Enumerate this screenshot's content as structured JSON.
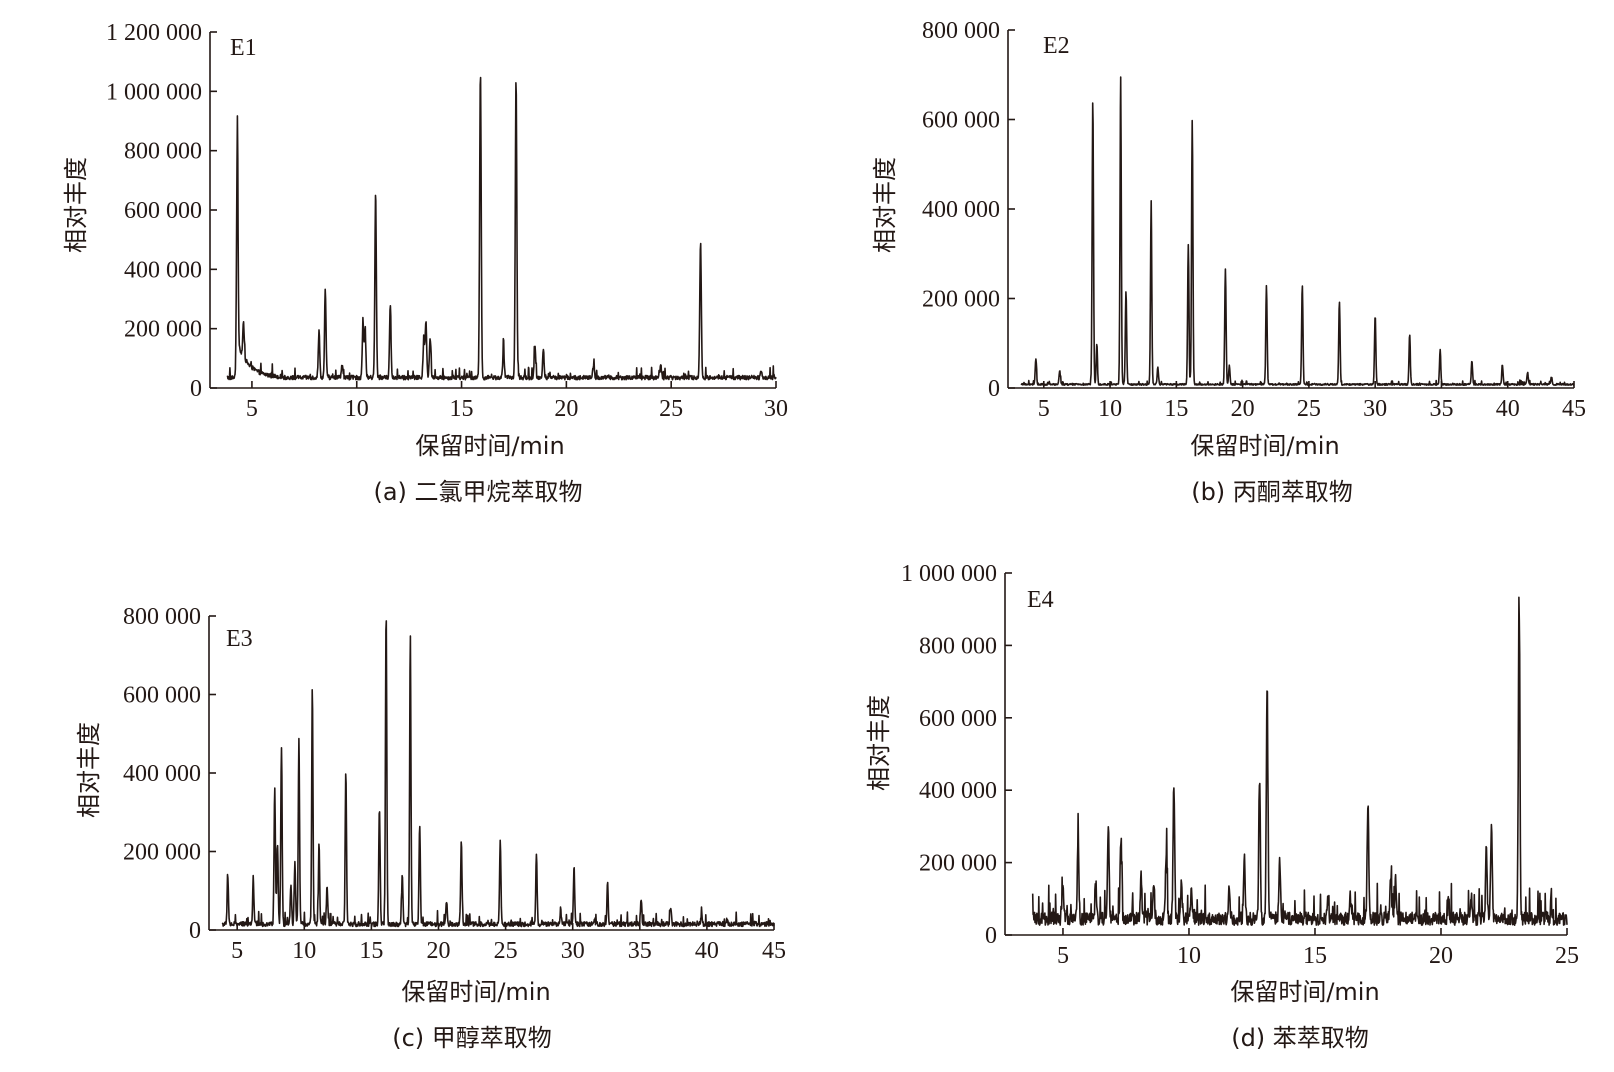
{
  "chart_data": [
    {
      "type": "line",
      "panel_label": "E1",
      "caption": "(a) 二氯甲烷萃取物",
      "xlabel": "保留时间/min",
      "ylabel": "相对丰度",
      "xlim": [
        3.0,
        30
      ],
      "ylim": [
        0,
        1200000
      ],
      "xticks": [
        5,
        10,
        15,
        20,
        25,
        30
      ],
      "yticks": [
        0,
        200000,
        400000,
        600000,
        800000,
        1000000,
        1200000
      ],
      "ytick_labels": [
        "0",
        "200 000",
        "400 000",
        "600 000",
        "800 000",
        "1 000 000",
        "1 200 000"
      ],
      "baseline": 35000,
      "x_start": 3.8,
      "noise": 12000,
      "peaks": [
        [
          4.3,
          800000
        ],
        [
          4.6,
          150000
        ],
        [
          8.2,
          190000
        ],
        [
          8.5,
          330000
        ],
        [
          9.3,
          80000
        ],
        [
          10.3,
          210000
        ],
        [
          10.4,
          200000
        ],
        [
          10.9,
          660000
        ],
        [
          11.6,
          280000
        ],
        [
          13.2,
          160000
        ],
        [
          13.3,
          220000
        ],
        [
          13.5,
          170000
        ],
        [
          15.9,
          1070000
        ],
        [
          17.6,
          1030000
        ],
        [
          17.0,
          130000
        ],
        [
          18.5,
          140000
        ],
        [
          18.9,
          130000
        ],
        [
          21.3,
          80000
        ],
        [
          24.5,
          80000
        ],
        [
          26.4,
          490000
        ],
        [
          29.3,
          60000
        ]
      ]
    },
    {
      "type": "line",
      "panel_label": "E2",
      "caption": "(b) 丙酮萃取物",
      "xlabel": "保留时间/min",
      "ylabel": "相对丰度",
      "xlim": [
        2.3,
        45
      ],
      "ylim": [
        0,
        800000
      ],
      "xticks": [
        5,
        10,
        15,
        20,
        25,
        30,
        35,
        40,
        45
      ],
      "yticks": [
        0,
        200000,
        400000,
        600000,
        800000
      ],
      "ytick_labels": [
        "0",
        "200 000",
        "400 000",
        "600 000",
        "800 000"
      ],
      "baseline": 8000,
      "x_start": 3.3,
      "noise": 3000,
      "peaks": [
        [
          4.4,
          65000
        ],
        [
          6.2,
          40000
        ],
        [
          8.7,
          645000
        ],
        [
          9.0,
          100000
        ],
        [
          10.8,
          700000
        ],
        [
          11.2,
          215000
        ],
        [
          13.1,
          420000
        ],
        [
          13.6,
          45000
        ],
        [
          15.9,
          320000
        ],
        [
          16.2,
          600000
        ],
        [
          18.7,
          265000
        ],
        [
          19.0,
          50000
        ],
        [
          21.8,
          228000
        ],
        [
          24.5,
          230000
        ],
        [
          27.3,
          195000
        ],
        [
          30.0,
          160000
        ],
        [
          32.6,
          120000
        ],
        [
          34.9,
          85000
        ],
        [
          37.3,
          60000
        ],
        [
          39.6,
          50000
        ],
        [
          41.5,
          35000
        ],
        [
          43.3,
          25000
        ]
      ]
    },
    {
      "type": "line",
      "panel_label": "E3",
      "caption": "(c) 甲醇萃取物",
      "xlabel": "保留时间/min",
      "ylabel": "相对丰度",
      "xlim": [
        2.9,
        45
      ],
      "ylim": [
        0,
        800000
      ],
      "xticks": [
        5,
        10,
        15,
        20,
        25,
        30,
        35,
        40,
        45
      ],
      "yticks": [
        0,
        200000,
        400000,
        600000,
        800000
      ],
      "ytick_labels": [
        "0",
        "200 000",
        "400 000",
        "600 000",
        "800 000"
      ],
      "baseline": 15000,
      "x_start": 3.9,
      "noise": 10000,
      "peaks": [
        [
          4.3,
          140000
        ],
        [
          6.2,
          130000
        ],
        [
          7.8,
          360000
        ],
        [
          8.0,
          220000
        ],
        [
          8.3,
          460000
        ],
        [
          9.0,
          110000
        ],
        [
          9.3,
          170000
        ],
        [
          9.6,
          490000
        ],
        [
          10.6,
          620000
        ],
        [
          11.1,
          220000
        ],
        [
          11.7,
          110000
        ],
        [
          13.1,
          400000
        ],
        [
          15.6,
          310000
        ],
        [
          16.1,
          810000
        ],
        [
          17.3,
          140000
        ],
        [
          17.9,
          750000
        ],
        [
          18.6,
          265000
        ],
        [
          20.6,
          75000
        ],
        [
          21.7,
          225000
        ],
        [
          24.6,
          225000
        ],
        [
          27.3,
          190000
        ],
        [
          29.1,
          50000
        ],
        [
          30.1,
          165000
        ],
        [
          32.6,
          120000
        ],
        [
          35.1,
          80000
        ],
        [
          37.3,
          55000
        ],
        [
          39.6,
          40000
        ],
        [
          41.5,
          25000
        ],
        [
          43.6,
          20000
        ]
      ]
    },
    {
      "type": "line",
      "panel_label": "E4",
      "caption": "(d) 苯萃取物",
      "xlabel": "保留时间/min",
      "ylabel": "相对丰度",
      "xlim": [
        2.7,
        25
      ],
      "ylim": [
        0,
        1000000
      ],
      "xticks": [
        5,
        10,
        15,
        20,
        25
      ],
      "yticks": [
        0,
        200000,
        400000,
        600000,
        800000,
        1000000
      ],
      "ytick_labels": [
        "0",
        "200 000",
        "400 000",
        "600 000",
        "800 000",
        "1 000 000"
      ],
      "baseline": 45000,
      "x_start": 3.8,
      "noise": 30000,
      "peaks": [
        [
          5.0,
          120000
        ],
        [
          5.6,
          270000
        ],
        [
          6.3,
          120000
        ],
        [
          6.8,
          300000
        ],
        [
          7.3,
          270000
        ],
        [
          8.1,
          160000
        ],
        [
          8.6,
          150000
        ],
        [
          9.1,
          230000
        ],
        [
          9.4,
          420000
        ],
        [
          9.7,
          140000
        ],
        [
          10.1,
          130000
        ],
        [
          11.6,
          130000
        ],
        [
          12.2,
          210000
        ],
        [
          12.8,
          430000
        ],
        [
          13.1,
          680000
        ],
        [
          13.6,
          200000
        ],
        [
          15.5,
          100000
        ],
        [
          16.4,
          110000
        ],
        [
          17.1,
          360000
        ],
        [
          18.0,
          160000
        ],
        [
          18.2,
          150000
        ],
        [
          20.3,
          100000
        ],
        [
          21.2,
          110000
        ],
        [
          21.8,
          240000
        ],
        [
          22.0,
          300000
        ],
        [
          23.1,
          880000
        ],
        [
          24.2,
          60000
        ]
      ]
    }
  ]
}
